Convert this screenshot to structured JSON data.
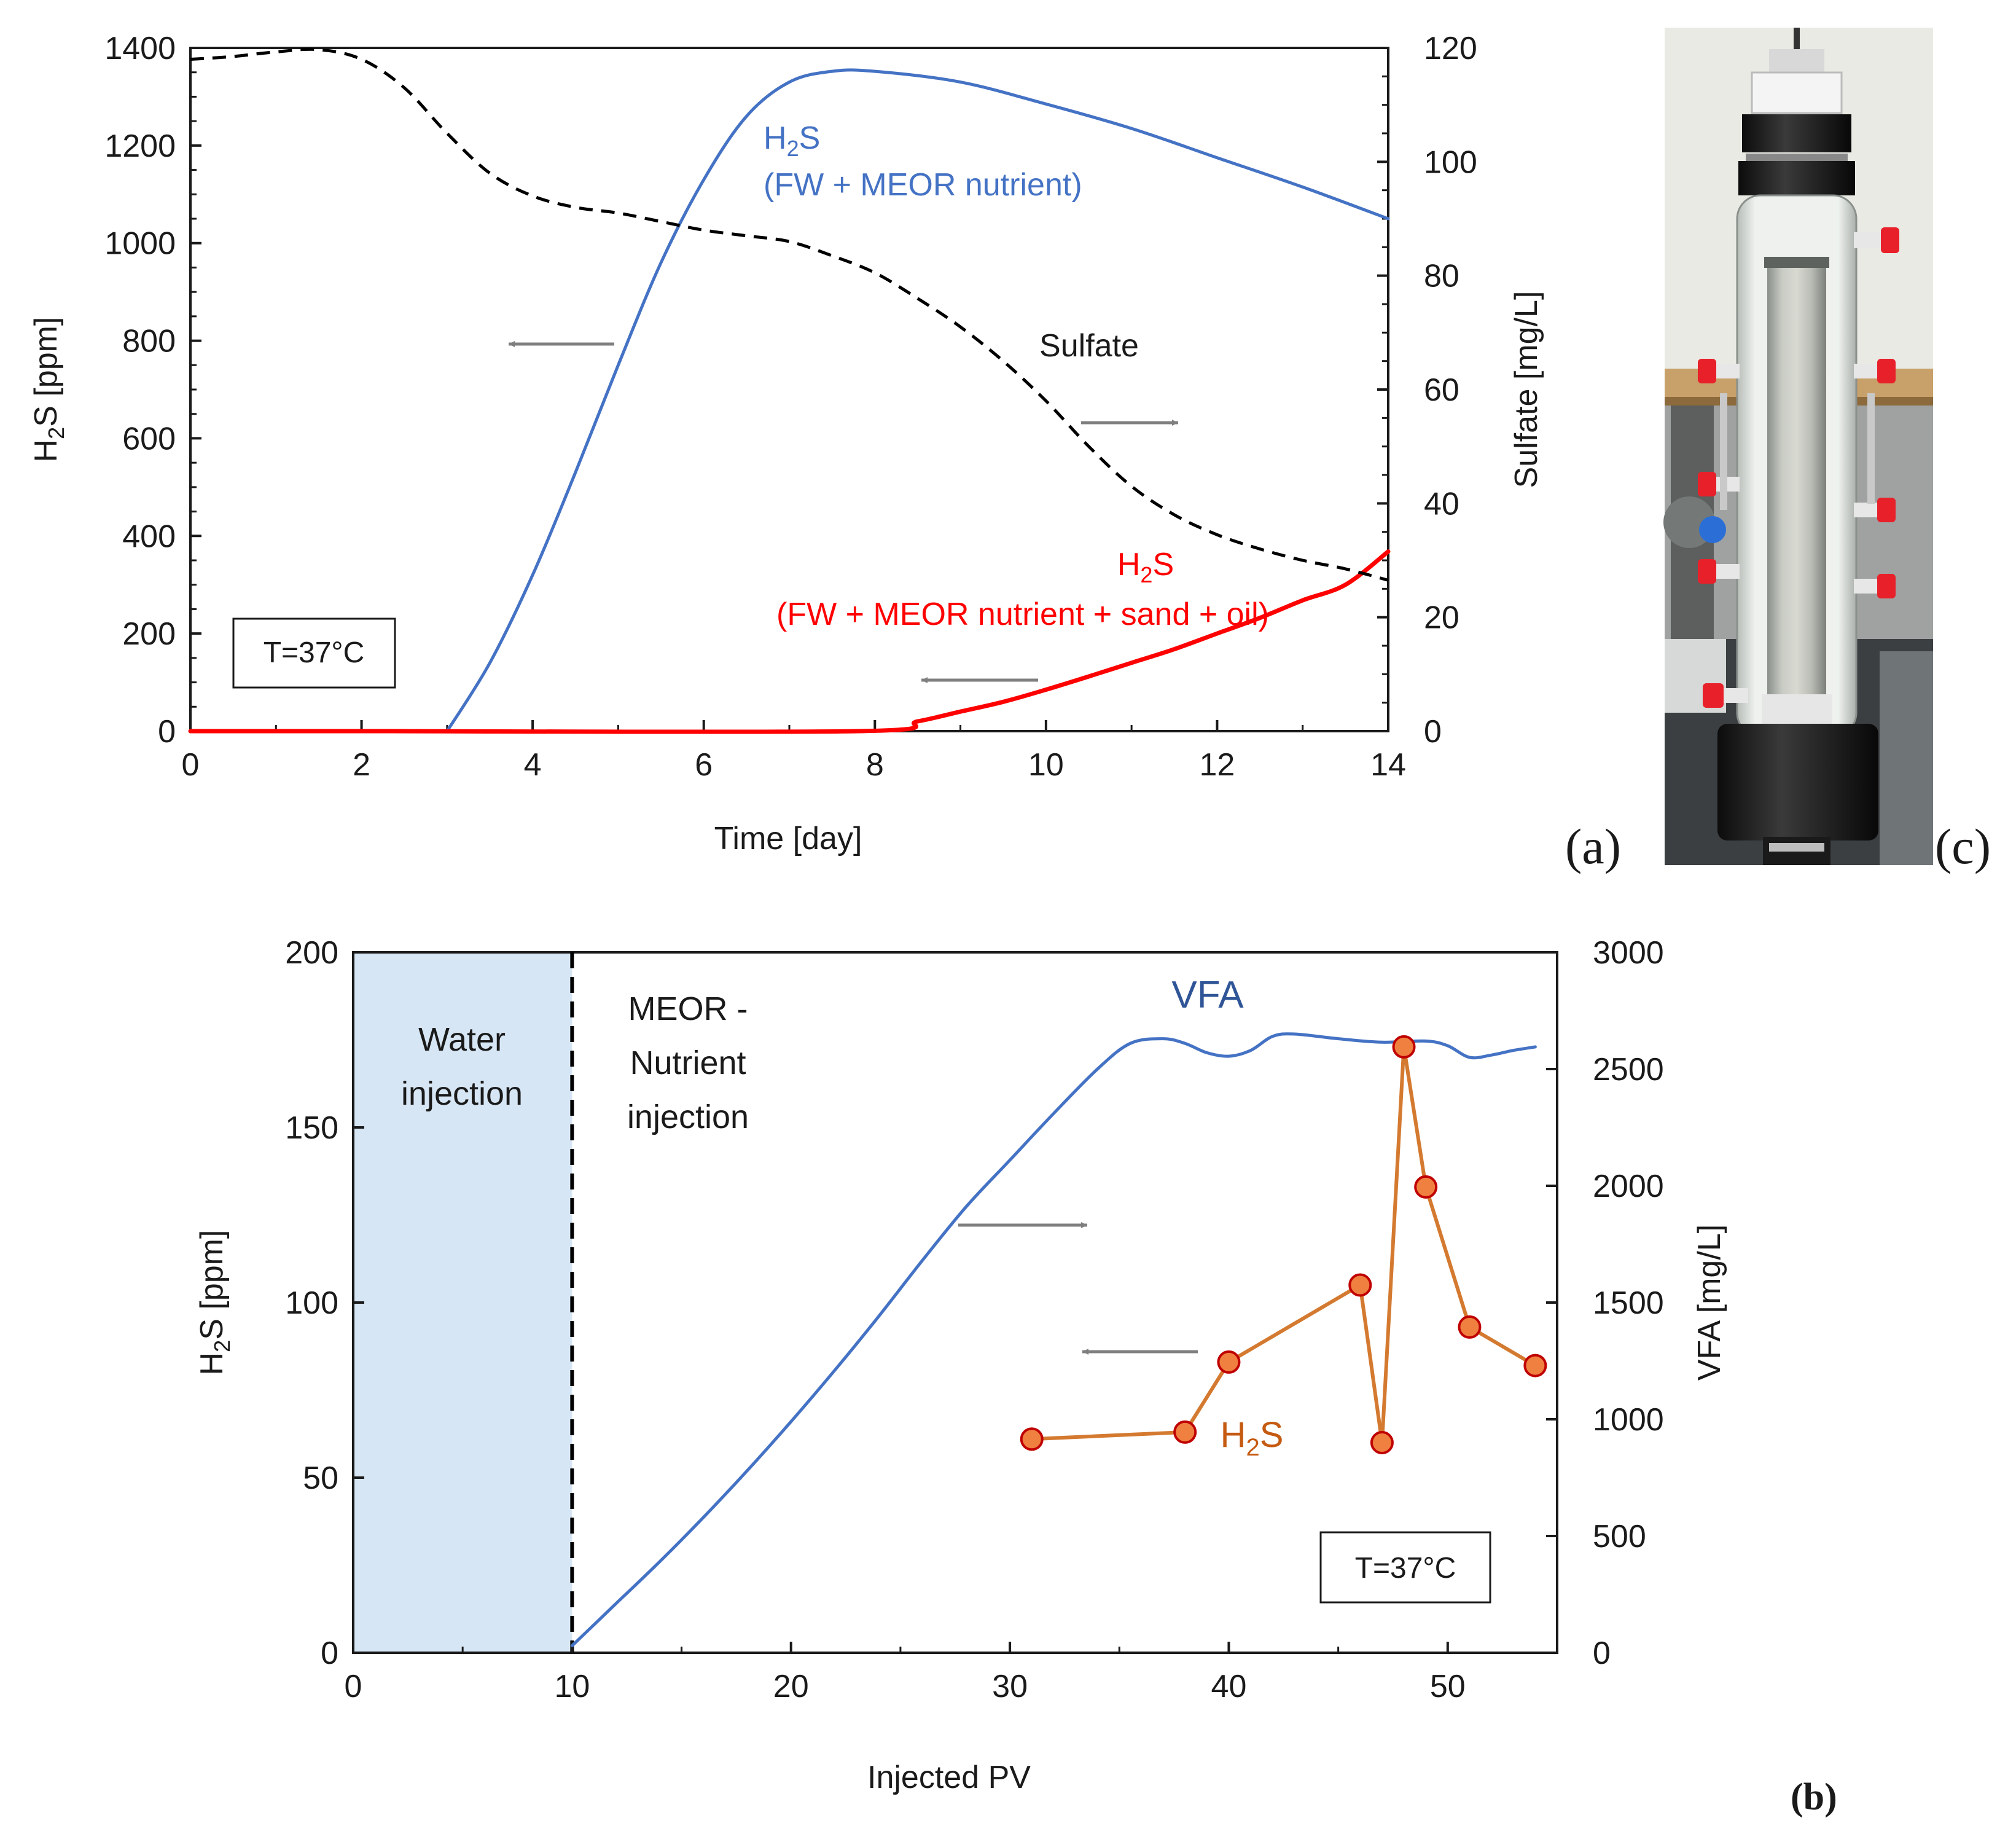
{
  "chart_data": [
    {
      "id": "a",
      "panel_label": "(a)",
      "type": "line",
      "xlabel": "Time [day]",
      "ylabel_left": "H₂S [ppm]",
      "ylabel_right": "Sulfate [mg/L]",
      "xlim": [
        0,
        14
      ],
      "ylim_left": [
        0,
        1400
      ],
      "ylim_right": [
        0,
        120
      ],
      "x_ticks": [
        "0",
        "2",
        "4",
        "6",
        "8",
        "10",
        "12",
        "14"
      ],
      "y_ticks_left": [
        "0",
        "200",
        "400",
        "600",
        "800",
        "1000",
        "1200",
        "1400"
      ],
      "y_ticks_right": [
        "0",
        "20",
        "40",
        "60",
        "80",
        "100",
        "120"
      ],
      "grid": false,
      "annotation_box": "T=37°C",
      "series": [
        {
          "label_line1": "H₂S",
          "label_line2": "(FW + MEOR nutrient)",
          "axis": "left",
          "color": "#4472C4",
          "style": "solid",
          "points": [
            [
              3.0,
              0
            ],
            [
              3.5,
              140
            ],
            [
              4.0,
              320
            ],
            [
              4.5,
              530
            ],
            [
              5.0,
              750
            ],
            [
              5.5,
              960
            ],
            [
              6.0,
              1130
            ],
            [
              6.5,
              1260
            ],
            [
              7.0,
              1330
            ],
            [
              7.5,
              1352
            ],
            [
              8.0,
              1352
            ],
            [
              9.0,
              1330
            ],
            [
              10.0,
              1285
            ],
            [
              11.0,
              1235
            ],
            [
              12.0,
              1175
            ],
            [
              13.0,
              1115
            ],
            [
              14.0,
              1050
            ]
          ]
        },
        {
          "label_line1": "H₂S",
          "label_line2": "(FW + MEOR nutrient + sand + oil)",
          "axis": "left",
          "color": "#FF0000",
          "style": "solid",
          "points": [
            [
              0,
              0
            ],
            [
              2.0,
              0
            ],
            [
              7.8,
              0
            ],
            [
              8.5,
              20
            ],
            [
              9.0,
              40
            ],
            [
              9.5,
              60
            ],
            [
              10.0,
              85
            ],
            [
              10.5,
              112
            ],
            [
              11.0,
              140
            ],
            [
              11.5,
              168
            ],
            [
              12.0,
              200
            ],
            [
              12.5,
              232
            ],
            [
              13.0,
              268
            ],
            [
              13.5,
              300
            ],
            [
              14.0,
              368
            ]
          ]
        },
        {
          "label": "Sulfate",
          "axis": "right",
          "color": "#000000",
          "style": "dashed",
          "points": [
            [
              0,
              118
            ],
            [
              0.5,
              118.5
            ],
            [
              1.0,
              119.3
            ],
            [
              1.5,
              119.7
            ],
            [
              2.0,
              118
            ],
            [
              2.5,
              113
            ],
            [
              3.0,
              105
            ],
            [
              3.5,
              98
            ],
            [
              4.0,
              94
            ],
            [
              4.5,
              92
            ],
            [
              5.0,
              91
            ],
            [
              5.5,
              89.5
            ],
            [
              6.0,
              88
            ],
            [
              6.5,
              87
            ],
            [
              7.0,
              86
            ],
            [
              7.5,
              83.5
            ],
            [
              8.0,
              80.5
            ],
            [
              8.5,
              76
            ],
            [
              9.0,
              71
            ],
            [
              9.5,
              65
            ],
            [
              10.0,
              58
            ],
            [
              10.5,
              50
            ],
            [
              11.0,
              43
            ],
            [
              11.5,
              38
            ],
            [
              12.0,
              34.5
            ],
            [
              12.5,
              32
            ],
            [
              13.0,
              30
            ],
            [
              13.5,
              28.5
            ],
            [
              14.0,
              26.5
            ]
          ]
        }
      ]
    },
    {
      "id": "b",
      "panel_label": "(b)",
      "type": "line",
      "xlabel": "Injected PV",
      "ylabel_left": "H₂S [ppm]",
      "ylabel_right": "VFA [mg/L]",
      "xlim": [
        0,
        55
      ],
      "ylim_left": [
        0,
        200
      ],
      "ylim_right": [
        0,
        3000
      ],
      "x_ticks": [
        "0",
        "10",
        "20",
        "30",
        "40",
        "50"
      ],
      "y_ticks_left": [
        "0",
        "50",
        "100",
        "150",
        "200"
      ],
      "y_ticks_right": [
        "0",
        "500",
        "1000",
        "1500",
        "2000",
        "2500",
        "3000"
      ],
      "grid": false,
      "annotation_box": "T=37°C",
      "region_label_line1": "Water",
      "region_label_line2": "injection",
      "region_range": [
        0,
        10
      ],
      "divider_label_line1": "MEOR -",
      "divider_label_line2": "Nutrient",
      "divider_label_line3": "injection",
      "series": [
        {
          "label": "VFA",
          "axis": "right",
          "color": "#4472C4",
          "style": "solid",
          "points": [
            [
              10,
              30
            ],
            [
              12,
              210
            ],
            [
              14,
              390
            ],
            [
              16,
              580
            ],
            [
              18,
              780
            ],
            [
              20,
              990
            ],
            [
              22,
              1210
            ],
            [
              24,
              1440
            ],
            [
              26,
              1680
            ],
            [
              28,
              1910
            ],
            [
              30,
              2110
            ],
            [
              32,
              2310
            ],
            [
              34,
              2500
            ],
            [
              35.5,
              2610
            ],
            [
              37,
              2630
            ],
            [
              38,
              2610
            ],
            [
              39,
              2570
            ],
            [
              40,
              2555
            ],
            [
              41,
              2580
            ],
            [
              42,
              2640
            ],
            [
              43,
              2650
            ],
            [
              45,
              2630
            ],
            [
              47,
              2615
            ],
            [
              49,
              2620
            ],
            [
              50,
              2600
            ],
            [
              51,
              2550
            ],
            [
              52,
              2560
            ],
            [
              53,
              2580
            ],
            [
              54,
              2595
            ]
          ]
        },
        {
          "label": "H₂S",
          "axis": "left",
          "color": "#D47A30",
          "marker_fill": "#F08040",
          "marker_edge": "#C00000",
          "style": "solid-markers",
          "points": [
            [
              31,
              61
            ],
            [
              38,
              63
            ],
            [
              40,
              83
            ],
            [
              46,
              105
            ],
            [
              47,
              60
            ],
            [
              48,
              173
            ],
            [
              49,
              133
            ],
            [
              51,
              93
            ],
            [
              54,
              82
            ]
          ]
        }
      ]
    }
  ],
  "photo": {
    "panel_label": "(c)"
  }
}
